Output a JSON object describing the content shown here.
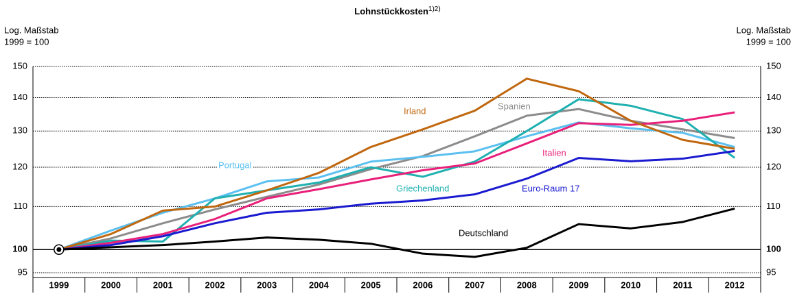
{
  "chart_data": {
    "type": "line",
    "title": "Lohnstückkosten",
    "title_superscript": "1)2)",
    "left_axis_label": [
      "Log. Maßstab",
      "1999 = 100"
    ],
    "right_axis_label": [
      "Log. Maßstab",
      "1999 = 100"
    ],
    "log_scale": true,
    "grid": true,
    "categories": [
      "1999",
      "2000",
      "2001",
      "2002",
      "2003",
      "2004",
      "2005",
      "2006",
      "2007",
      "2008",
      "2009",
      "2010",
      "2011",
      "2012"
    ],
    "ylim": [
      94,
      150
    ],
    "yticks": [
      95,
      100,
      110,
      120,
      130,
      140,
      150
    ],
    "series": [
      {
        "name": "Deutschland",
        "color": "#000000",
        "values": [
          100,
          100.5,
          101,
          101.8,
          102.7,
          102.2,
          101.3,
          99.1,
          98.4,
          100.4,
          105.8,
          104.8,
          106.3,
          109.5
        ]
      },
      {
        "name": "Euro-Raum 17",
        "color": "#1a1ad0",
        "values": [
          100,
          101,
          103,
          106,
          108.5,
          109.3,
          110.7,
          111.5,
          113,
          117,
          122.5,
          121.6,
          122.3,
          124.4
        ]
      },
      {
        "name": "Irland",
        "color": "#c0670f",
        "values": [
          100,
          103.5,
          109,
          110,
          114,
          118.5,
          125.5,
          130.5,
          136,
          146,
          142,
          133,
          127.5,
          125
        ]
      },
      {
        "name": "Spanien",
        "color": "#8c8c8c",
        "values": [
          100,
          102.5,
          106,
          109.3,
          112.4,
          115.5,
          119.5,
          123,
          128.5,
          134.5,
          136.5,
          133,
          130.5,
          128
        ]
      },
      {
        "name": "Italien",
        "color": "#e8207a",
        "values": [
          100,
          101.5,
          103.5,
          107,
          112,
          114.3,
          116.8,
          119.2,
          121,
          126.5,
          132.3,
          131.8,
          133,
          135.5
        ]
      },
      {
        "name": "Portugal",
        "color": "#5bc0f0",
        "values": [
          100,
          104.3,
          108.5,
          112,
          116.3,
          117.3,
          121.5,
          122.8,
          124.3,
          128.5,
          132.5,
          130.8,
          129.5,
          125.5
        ]
      },
      {
        "name": "Griechenland",
        "color": "#20b0b0",
        "values": [
          100,
          102,
          101.8,
          112,
          114,
          116,
          120,
          117.5,
          121.5,
          130,
          139.5,
          137.5,
          133.5,
          122.5
        ]
      }
    ]
  }
}
